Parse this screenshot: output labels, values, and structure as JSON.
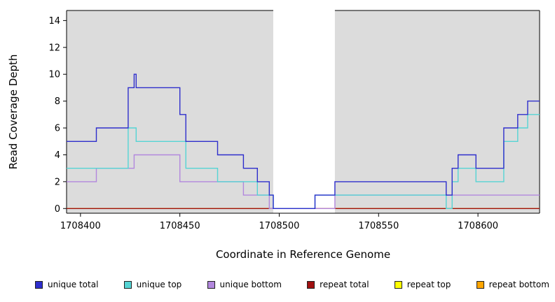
{
  "chart_data": {
    "type": "line",
    "step": "post",
    "title": "",
    "xlabel": "Coordinate in Reference Genome",
    "ylabel": "Read Coverage Depth",
    "xlim": [
      1708393,
      1708631
    ],
    "ylim": [
      0,
      14.75
    ],
    "xticks": [
      1708400,
      1708450,
      1708500,
      1708550,
      1708600
    ],
    "yticks": [
      0,
      2,
      4,
      6,
      8,
      10,
      12,
      14
    ],
    "grid": false,
    "plot_background": "#dcdcdc",
    "axis_color": "#000000",
    "masked_region": {
      "x_start": 1708497,
      "x_end": 1708528,
      "color": "#ffffff"
    },
    "legend_position": "bottom",
    "series": [
      {
        "name": "unique total",
        "color": "#2e2ecc",
        "points": [
          [
            1708393,
            5
          ],
          [
            1708408,
            6
          ],
          [
            1708424,
            9
          ],
          [
            1708427,
            10
          ],
          [
            1708428,
            9
          ],
          [
            1708450,
            7
          ],
          [
            1708453,
            5
          ],
          [
            1708469,
            4
          ],
          [
            1708482,
            3
          ],
          [
            1708489,
            2
          ],
          [
            1708495,
            1
          ],
          [
            1708497,
            0
          ],
          [
            1708518,
            1
          ],
          [
            1708528,
            2
          ],
          [
            1708584,
            1
          ],
          [
            1708587,
            3
          ],
          [
            1708590,
            4
          ],
          [
            1708599,
            3
          ],
          [
            1708613,
            6
          ],
          [
            1708620,
            7
          ],
          [
            1708625,
            8
          ]
        ]
      },
      {
        "name": "unique top",
        "color": "#55d4d4",
        "points": [
          [
            1708393,
            3
          ],
          [
            1708424,
            6
          ],
          [
            1708428,
            5
          ],
          [
            1708453,
            3
          ],
          [
            1708469,
            2
          ],
          [
            1708489,
            1
          ],
          [
            1708497,
            0
          ],
          [
            1708518,
            1
          ],
          [
            1708584,
            0
          ],
          [
            1708587,
            2
          ],
          [
            1708590,
            3
          ],
          [
            1708599,
            2
          ],
          [
            1708613,
            5
          ],
          [
            1708620,
            6
          ],
          [
            1708625,
            7
          ]
        ]
      },
      {
        "name": "unique bottom",
        "color": "#b287dd",
        "points": [
          [
            1708393,
            2
          ],
          [
            1708408,
            3
          ],
          [
            1708427,
            4
          ],
          [
            1708450,
            2
          ],
          [
            1708482,
            1
          ],
          [
            1708495,
            0
          ],
          [
            1708528,
            1
          ]
        ]
      },
      {
        "name": "repeat total",
        "color": "#a01010",
        "points": [
          [
            1708393,
            0
          ]
        ]
      },
      {
        "name": "repeat top",
        "color": "#ffff00",
        "points": [
          [
            1708393,
            0
          ]
        ]
      },
      {
        "name": "repeat bottom",
        "color": "#ffa500",
        "points": [
          [
            1708393,
            0
          ]
        ]
      }
    ]
  }
}
